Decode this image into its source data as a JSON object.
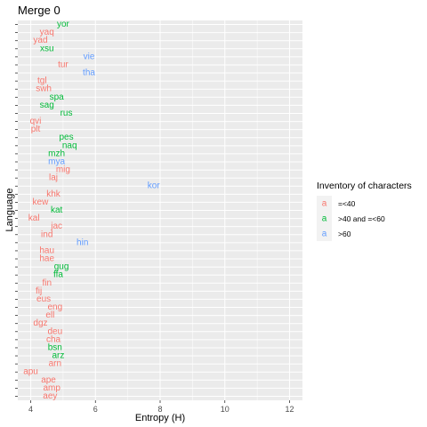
{
  "chart_data": {
    "type": "scatter",
    "title": "Merge 0",
    "xlabel": "Entropy (H)",
    "ylabel": "Language",
    "xlim": [
      3.6,
      12.4
    ],
    "x_ticks": [
      4,
      6,
      8,
      10,
      12
    ],
    "grid": true,
    "legend_position": "right",
    "legend": {
      "title": "Inventory of characters",
      "glyph": "a",
      "entries": [
        {
          "label": "=<40",
          "color": "#F8766D"
        },
        {
          "label": ">40 and =<60",
          "color": "#00BA38"
        },
        {
          "label": ">60",
          "color": "#619CFF"
        }
      ]
    },
    "categories": [
      "yor",
      "yaq",
      "yad",
      "xsu",
      "vie",
      "tur",
      "tha",
      "tgl",
      "swh",
      "spa",
      "sag",
      "rus",
      "qvi",
      "plt",
      "pes",
      "naq",
      "mzh",
      "mya",
      "mig",
      "laj",
      "kor",
      "khk",
      "kew",
      "kat",
      "kal",
      "jac",
      "ind",
      "hin",
      "hau",
      "hae",
      "gug",
      "ffa",
      "fin",
      "fij",
      "eus",
      "eng",
      "ell",
      "dgz",
      "deu",
      "cha",
      "bsn",
      "arz",
      "arn",
      "apu",
      "ape",
      "amp",
      "aey"
    ],
    "points": [
      {
        "label": "yor",
        "x": 5.0,
        "group": 1
      },
      {
        "label": "yaq",
        "x": 4.5,
        "group": 0
      },
      {
        "label": "yad",
        "x": 4.3,
        "group": 0
      },
      {
        "label": "xsu",
        "x": 4.5,
        "group": 1
      },
      {
        "label": "vie",
        "x": 5.8,
        "group": 2
      },
      {
        "label": "tur",
        "x": 5.0,
        "group": 0
      },
      {
        "label": "tha",
        "x": 5.8,
        "group": 2
      },
      {
        "label": "tgl",
        "x": 4.35,
        "group": 0
      },
      {
        "label": "swh",
        "x": 4.4,
        "group": 0
      },
      {
        "label": "spa",
        "x": 4.8,
        "group": 1
      },
      {
        "label": "sag",
        "x": 4.5,
        "group": 1
      },
      {
        "label": "rus",
        "x": 5.1,
        "group": 1
      },
      {
        "label": "qvi",
        "x": 4.15,
        "group": 0
      },
      {
        "label": "plt",
        "x": 4.15,
        "group": 0
      },
      {
        "label": "pes",
        "x": 5.1,
        "group": 1
      },
      {
        "label": "naq",
        "x": 5.2,
        "group": 1
      },
      {
        "label": "mzh",
        "x": 4.8,
        "group": 1
      },
      {
        "label": "mya",
        "x": 4.8,
        "group": 2
      },
      {
        "label": "mig",
        "x": 5.0,
        "group": 0
      },
      {
        "label": "laj",
        "x": 4.7,
        "group": 0
      },
      {
        "label": "kor",
        "x": 7.8,
        "group": 2
      },
      {
        "label": "khk",
        "x": 4.7,
        "group": 0
      },
      {
        "label": "kew",
        "x": 4.3,
        "group": 0
      },
      {
        "label": "kat",
        "x": 4.8,
        "group": 1
      },
      {
        "label": "kal",
        "x": 4.1,
        "group": 0
      },
      {
        "label": "jac",
        "x": 4.8,
        "group": 0
      },
      {
        "label": "ind",
        "x": 4.5,
        "group": 0
      },
      {
        "label": "hin",
        "x": 5.6,
        "group": 2
      },
      {
        "label": "hau",
        "x": 4.5,
        "group": 0
      },
      {
        "label": "hae",
        "x": 4.5,
        "group": 0
      },
      {
        "label": "gug",
        "x": 4.95,
        "group": 1
      },
      {
        "label": "ffa",
        "x": 4.85,
        "group": 1
      },
      {
        "label": "fin",
        "x": 4.5,
        "group": 0
      },
      {
        "label": "fij",
        "x": 4.25,
        "group": 0
      },
      {
        "label": "eus",
        "x": 4.4,
        "group": 0
      },
      {
        "label": "eng",
        "x": 4.75,
        "group": 0
      },
      {
        "label": "ell",
        "x": 4.6,
        "group": 0
      },
      {
        "label": "dgz",
        "x": 4.3,
        "group": 0
      },
      {
        "label": "deu",
        "x": 4.75,
        "group": 0
      },
      {
        "label": "cha",
        "x": 4.7,
        "group": 0
      },
      {
        "label": "bsn",
        "x": 4.75,
        "group": 1
      },
      {
        "label": "arz",
        "x": 4.85,
        "group": 1
      },
      {
        "label": "arn",
        "x": 4.75,
        "group": 0
      },
      {
        "label": "apu",
        "x": 4.0,
        "group": 0
      },
      {
        "label": "ape",
        "x": 4.55,
        "group": 0
      },
      {
        "label": "amp",
        "x": 4.65,
        "group": 0
      },
      {
        "label": "aey",
        "x": 4.6,
        "group": 0
      }
    ]
  }
}
